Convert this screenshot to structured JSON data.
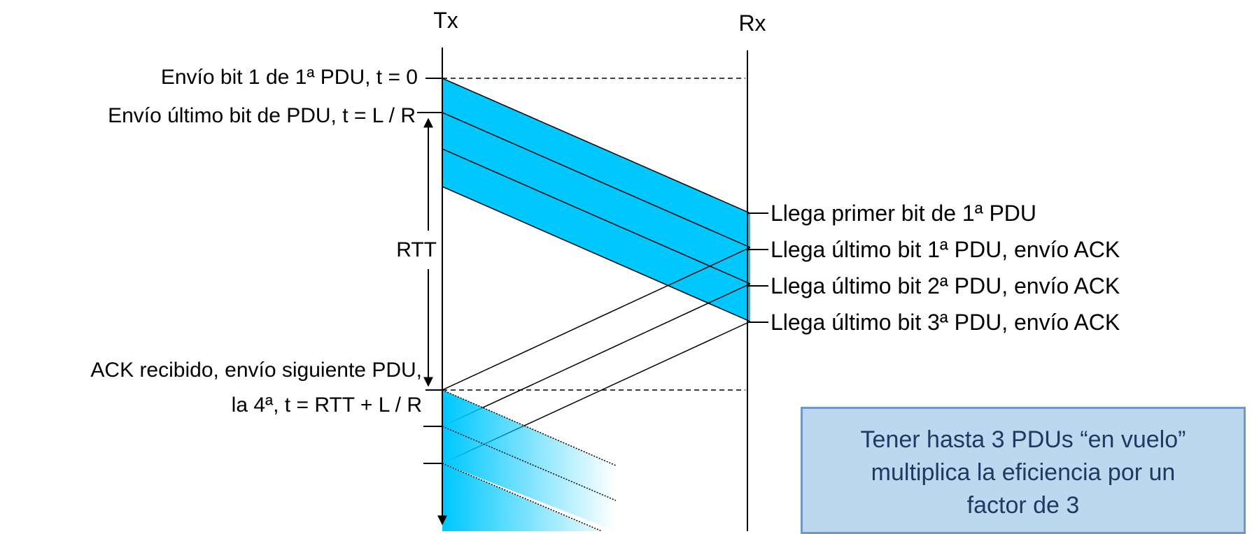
{
  "axes": {
    "tx": "Tx",
    "rx": "Rx"
  },
  "left_labels": {
    "first_bit": "Envío bit 1 de 1ª PDU, t = 0",
    "last_bit": "Envío último bit de PDU, t = L / R",
    "rtt": "RTT",
    "ack_line1": "ACK recibido, envío siguiente PDU,",
    "ack_line2": "la 4ª, t = RTT + L / R"
  },
  "right_labels": {
    "arrive_first": "Llega primer bit de 1ª PDU",
    "arrive_pdu1": "Llega último bit 1ª PDU, envío ACK",
    "arrive_pdu2": "Llega último bit 2ª PDU, envío ACK",
    "arrive_pdu3": "Llega último bit 3ª PDU, envío ACK"
  },
  "note": "Tener hasta 3 PDUs “en vuelo” multiplica la eficiencia por un factor de 3",
  "colors": {
    "pdu_fill": "#00c8ff",
    "note_bg": "#bdd7ee",
    "note_border": "#6f97c8",
    "note_text": "#1f3864"
  }
}
